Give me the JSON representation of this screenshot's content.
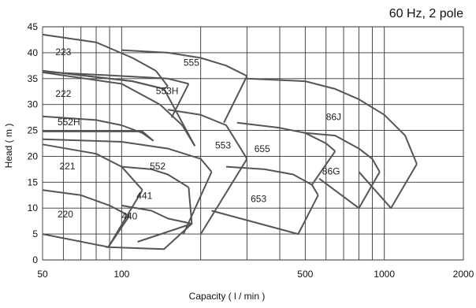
{
  "chart_data": {
    "type": "line",
    "annotation": "60 Hz, 2 pole",
    "xlabel": "Capacity ( l / min )",
    "ylabel": "Head ( m )",
    "x_scale": "log",
    "xlim": [
      50,
      2000
    ],
    "ylim": [
      0,
      45
    ],
    "x_tick_labels": [
      {
        "value": 50,
        "label": "50"
      },
      {
        "value": 100,
        "label": "100"
      },
      {
        "value": 500,
        "label": "500"
      },
      {
        "value": 1000,
        "label": "1000"
      },
      {
        "value": 2000,
        "label": "2000"
      }
    ],
    "x_gridlines": [
      50,
      60,
      70,
      80,
      90,
      100,
      200,
      300,
      400,
      500,
      600,
      700,
      800,
      900,
      1000,
      2000
    ],
    "y_ticks": [
      0,
      5,
      10,
      15,
      20,
      25,
      30,
      35,
      40,
      45
    ],
    "grid": true,
    "series": [
      {
        "name": "220",
        "curves": [
          [
            [
              50,
              13.5
            ],
            [
              70,
              12.5
            ],
            [
              90,
              10.5
            ],
            [
              107,
              8.5
            ]
          ],
          [
            [
              50,
              5
            ],
            [
              89,
              2.5
            ],
            [
              107,
              8.5
            ]
          ]
        ]
      },
      {
        "name": "221",
        "curves": [
          [
            [
              50,
              22.3
            ],
            [
              80,
              20.5
            ],
            [
              100,
              18
            ],
            [
              120,
              13.5
            ]
          ],
          [
            [
              89,
              2.5
            ],
            [
              120,
              13.5
            ]
          ]
        ]
      },
      {
        "name": "552H",
        "curves": [
          [
            [
              50,
              27.7
            ],
            [
              80,
              27
            ],
            [
              100,
              26
            ],
            [
              120,
              24.5
            ],
            [
              132,
              23
            ]
          ],
          [
            [
              50,
              24.8
            ],
            [
              120,
              24.8
            ],
            [
              132,
              23
            ]
          ]
        ]
      },
      {
        "name": "222",
        "curves": [
          [
            [
              50,
              36.2
            ],
            [
              100,
              34
            ],
            [
              140,
              30
            ],
            [
              170,
              26
            ],
            [
              190,
              22
            ]
          ],
          [
            [
              50,
              36.5
            ],
            [
              110,
              34.5
            ],
            [
              145,
              33
            ],
            [
              190,
              22
            ]
          ]
        ]
      },
      {
        "name": "223",
        "curves": [
          [
            [
              50,
              43.5
            ],
            [
              80,
              42
            ],
            [
              110,
              39
            ],
            [
              135,
              36.5
            ],
            [
              150,
              33.5
            ]
          ],
          [
            [
              50,
              36.5
            ],
            [
              110,
              34.5
            ],
            [
              145,
              33
            ],
            [
              150,
              33.5
            ]
          ]
        ]
      },
      {
        "name": "553H",
        "curves": [
          [
            [
              50,
              36.3
            ],
            [
              100,
              35.5
            ],
            [
              150,
              35
            ],
            [
              180,
              34
            ]
          ],
          [
            [
              155,
              27.5
            ],
            [
              180,
              34
            ]
          ]
        ]
      },
      {
        "name": "555",
        "curves": [
          [
            [
              100,
              40.5
            ],
            [
              150,
              40
            ],
            [
              200,
              39
            ],
            [
              250,
              37.5
            ],
            [
              300,
              35.5
            ]
          ],
          [
            [
              245,
              26.5
            ],
            [
              300,
              35.5
            ]
          ]
        ]
      },
      {
        "name": "440",
        "curves": [
          [
            [
              100,
              10.5
            ],
            [
              130,
              9.5
            ],
            [
              150,
              8
            ],
            [
              185,
              7
            ]
          ],
          [
            [
              87,
              2.5
            ],
            [
              145,
              2.1
            ],
            [
              185,
              7
            ]
          ]
        ]
      },
      {
        "name": "441",
        "curves": [
          [
            [
              100,
              18
            ],
            [
              130,
              17.5
            ],
            [
              150,
              16.5
            ],
            [
              180,
              14
            ]
          ],
          [
            [
              115,
              3.5
            ],
            [
              185,
              7
            ],
            [
              180,
              14
            ]
          ]
        ]
      },
      {
        "name": "552",
        "curves": [
          [
            [
              50,
              23.3
            ],
            [
              100,
              22.8
            ],
            [
              150,
              21.5
            ],
            [
              200,
              19.5
            ],
            [
              220,
              17
            ]
          ],
          [
            [
              172,
              5
            ],
            [
              220,
              17
            ]
          ]
        ]
      },
      {
        "name": "553",
        "curves": [
          [
            [
              150,
              29
            ],
            [
              200,
              28
            ],
            [
              250,
              26
            ],
            [
              280,
              22
            ],
            [
              300,
              19.5
            ]
          ],
          [
            [
              200,
              5
            ],
            [
              300,
              19.5
            ]
          ]
        ]
      },
      {
        "name": "653",
        "curves": [
          [
            [
              250,
              18
            ],
            [
              350,
              17.5
            ],
            [
              450,
              16.5
            ],
            [
              530,
              14.5
            ],
            [
              560,
              12.5
            ]
          ],
          [
            [
              220,
              9.5
            ],
            [
              470,
              5
            ],
            [
              560,
              12.5
            ]
          ]
        ]
      },
      {
        "name": "655",
        "curves": [
          [
            [
              275,
              26.5
            ],
            [
              400,
              25.5
            ],
            [
              500,
              24.5
            ],
            [
              600,
              22.5
            ],
            [
              650,
              21
            ]
          ],
          [
            [
              530,
              14.5
            ],
            [
              650,
              21
            ]
          ]
        ]
      },
      {
        "name": "86G",
        "curves": [
          [
            [
              500,
              24.5
            ],
            [
              650,
              24
            ],
            [
              800,
              21.5
            ],
            [
              900,
              19.5
            ],
            [
              960,
              17
            ]
          ],
          [
            [
              565,
              15.7
            ],
            [
              800,
              10
            ],
            [
              960,
              17
            ]
          ]
        ]
      },
      {
        "name": "86J",
        "curves": [
          [
            [
              300,
              35
            ],
            [
              500,
              34.5
            ],
            [
              650,
              33
            ],
            [
              800,
              31
            ],
            [
              1000,
              28
            ],
            [
              1200,
              24
            ],
            [
              1330,
              18.5
            ]
          ],
          [
            [
              800,
              17
            ],
            [
              1060,
              10
            ],
            [
              1330,
              18.5
            ]
          ]
        ]
      }
    ],
    "labels": [
      {
        "text": "223",
        "x": 56,
        "y": 39.5
      },
      {
        "text": "222",
        "x": 56,
        "y": 31.5
      },
      {
        "text": "552H",
        "x": 57,
        "y": 26
      },
      {
        "text": "221",
        "x": 58,
        "y": 17.5
      },
      {
        "text": "220",
        "x": 57,
        "y": 8.2
      },
      {
        "text": "440",
        "x": 100,
        "y": 7.8
      },
      {
        "text": "441",
        "x": 114,
        "y": 11.8
      },
      {
        "text": "552",
        "x": 128,
        "y": 17.5
      },
      {
        "text": "553H",
        "x": 135,
        "y": 32
      },
      {
        "text": "555",
        "x": 172,
        "y": 37.5
      },
      {
        "text": "553",
        "x": 227,
        "y": 21.5
      },
      {
        "text": "655",
        "x": 320,
        "y": 20.8
      },
      {
        "text": "653",
        "x": 310,
        "y": 11.2
      },
      {
        "text": "86G",
        "x": 580,
        "y": 16.5
      },
      {
        "text": "86J",
        "x": 600,
        "y": 27
      }
    ]
  }
}
